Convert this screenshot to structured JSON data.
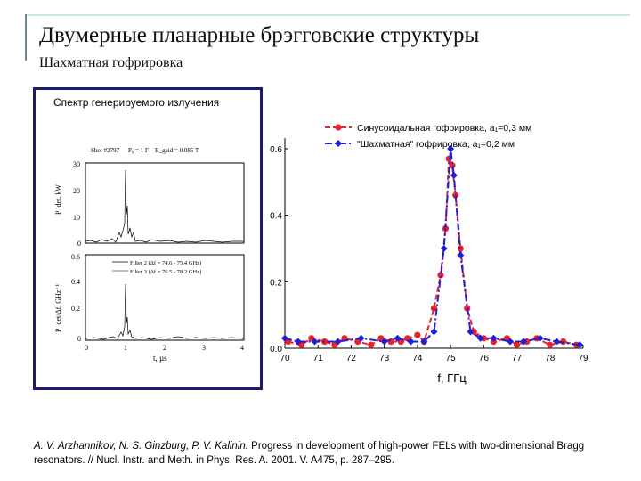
{
  "slide": {
    "title": "Двумерные планарные брэгговские структуры",
    "subtitle": "Шахматная гофрировка"
  },
  "inset": {
    "caption": "Спектр генерируемого излучения",
    "shot": "Shot #2797",
    "p0": "P₀ = 1 Г",
    "bguid": "B_gaid = 0.085 T",
    "top_ylabel": "P_det, kW",
    "top_ticks": [
      "30",
      "20",
      "10",
      "0"
    ],
    "bottom_ylabel": "P_det/Δf, GHz⁻¹",
    "bottom_ticks": [
      "0.6",
      "0.4",
      "0.2",
      "0"
    ],
    "xticks": [
      "0",
      "1",
      "2",
      "3",
      "4"
    ],
    "xlabel": "t, µs",
    "filter2": "Filter 2 (Δf = 74.6 - 75.4 GHz)",
    "filter3": "Filter 3 (Δf = 76.5 - 78.2 GHz)"
  },
  "chart_data": {
    "type": "line",
    "xlabel": "f, ГГц",
    "ylabel": "",
    "xlim": [
      70,
      79
    ],
    "ylim": [
      0,
      0.6
    ],
    "xticks": [
      "70",
      "71",
      "72",
      "73",
      "74",
      "75",
      "76",
      "77",
      "78",
      "79"
    ],
    "yticks": [
      "0.0",
      "0.2",
      "0.4",
      "0.6"
    ],
    "legend": "top",
    "series": [
      {
        "name": "Синусоидальная гофрировка, a₁=0,3 мм",
        "color": "#e8232a",
        "marker": "circle",
        "x": [
          70.1,
          70.5,
          70.8,
          71.2,
          71.5,
          71.8,
          72.2,
          72.6,
          72.9,
          73.2,
          73.5,
          73.7,
          74.0,
          74.2,
          74.5,
          74.7,
          74.85,
          74.95,
          75.05,
          75.15,
          75.3,
          75.5,
          75.7,
          76.0,
          76.3,
          76.7,
          77.0,
          77.3,
          77.6,
          78.0,
          78.4,
          78.8
        ],
        "y": [
          0.02,
          0.01,
          0.03,
          0.02,
          0.01,
          0.03,
          0.02,
          0.01,
          0.03,
          0.02,
          0.02,
          0.03,
          0.04,
          0.02,
          0.12,
          0.22,
          0.36,
          0.57,
          0.55,
          0.46,
          0.3,
          0.12,
          0.05,
          0.03,
          0.02,
          0.03,
          0.01,
          0.02,
          0.03,
          0.01,
          0.02,
          0.01
        ]
      },
      {
        "name": "\"Шахматная\" гофрировка, a₁=0,2 мм",
        "color": "#1f1fd6",
        "marker": "diamond",
        "x": [
          70.0,
          70.4,
          70.9,
          71.6,
          72.3,
          73.0,
          73.4,
          73.8,
          74.2,
          74.5,
          74.8,
          75.0,
          75.1,
          75.3,
          75.6,
          75.9,
          76.3,
          76.8,
          77.2,
          77.7,
          78.2,
          78.9
        ],
        "y": [
          0.03,
          0.02,
          0.02,
          0.02,
          0.03,
          0.02,
          0.03,
          0.02,
          0.02,
          0.05,
          0.3,
          0.6,
          0.52,
          0.28,
          0.05,
          0.03,
          0.03,
          0.02,
          0.02,
          0.03,
          0.02,
          0.01
        ]
      }
    ]
  },
  "reference": {
    "authors": "A. V. Arzhannikov, N. S. Ginzburg, P. V. Kalinin.",
    "text": " Progress in development of high-power FELs with two-dimensional Bragg resonators. // Nucl. Instr. and Meth. in Phys. Res. A. 2001. V. A475, p. 287–295."
  }
}
